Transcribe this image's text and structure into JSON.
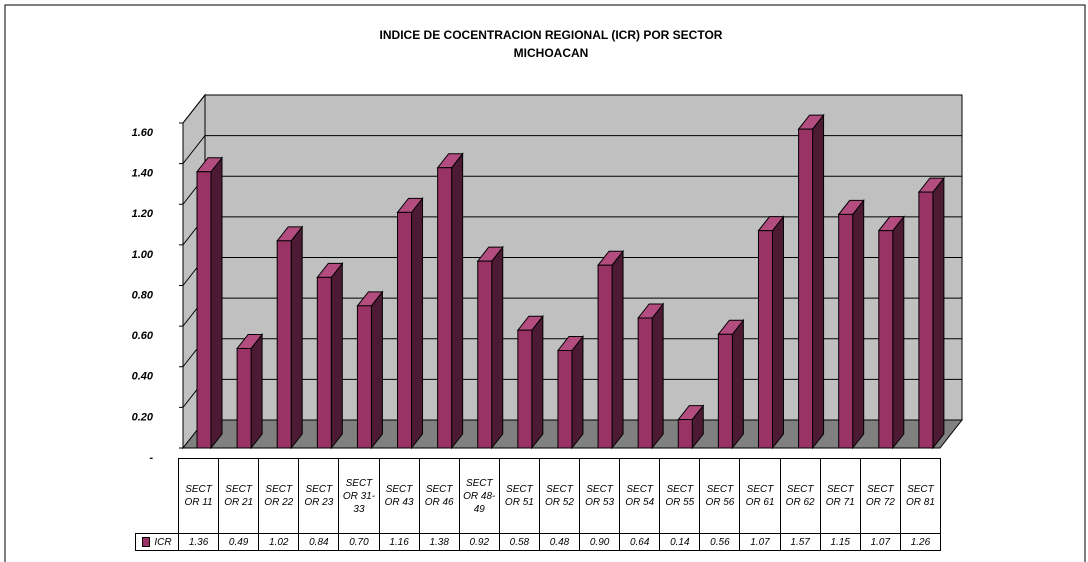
{
  "chart_data": {
    "type": "bar3d",
    "title": "INDICE DE COCENTRACION REGIONAL (ICR) POR SECTOR",
    "subtitle": "MICHOACAN",
    "categories": [
      "SECTOR 11",
      "SECTOR 21",
      "SECTOR 22",
      "SECTOR 23",
      "SECTOR 31-33",
      "SECTOR 43",
      "SECTOR 46",
      "SECTOR 48-49",
      "SECTOR 51",
      "SECTOR 52",
      "SECTOR 53",
      "SECTOR 54",
      "SECTOR 55",
      "SECTOR 56",
      "SECTOR 61",
      "SECTOR 62",
      "SECTOR 71",
      "SECTOR 72",
      "SECTOR 81"
    ],
    "series": [
      {
        "name": "ICR",
        "color": "#993366",
        "values": [
          1.36,
          0.49,
          1.02,
          0.84,
          0.7,
          1.16,
          1.38,
          0.92,
          0.58,
          0.48,
          0.9,
          0.64,
          0.14,
          0.56,
          1.07,
          1.57,
          1.15,
          1.07,
          1.26
        ],
        "value_labels": [
          "1.36",
          "0.49",
          "1.02",
          "0.84",
          "0.70",
          "1.16",
          "1.38",
          "0.92",
          "0.58",
          "0.48",
          "0.90",
          "0.64",
          "0.14",
          "0.56",
          "1.07",
          "1.57",
          "1.15",
          "1.07",
          "1.26"
        ]
      }
    ],
    "ylim": [
      0,
      1.6
    ],
    "yticks": [
      {
        "value": 0,
        "label": "-"
      },
      {
        "value": 0.2,
        "label": "0.20"
      },
      {
        "value": 0.4,
        "label": "0.40"
      },
      {
        "value": 0.6,
        "label": "0.60"
      },
      {
        "value": 0.8,
        "label": "0.80"
      },
      {
        "value": 1,
        "label": "1.00"
      },
      {
        "value": 1.2,
        "label": "1.20"
      },
      {
        "value": 1.4,
        "label": "1.40"
      },
      {
        "value": 1.6,
        "label": "1.60"
      }
    ],
    "grid": true
  }
}
